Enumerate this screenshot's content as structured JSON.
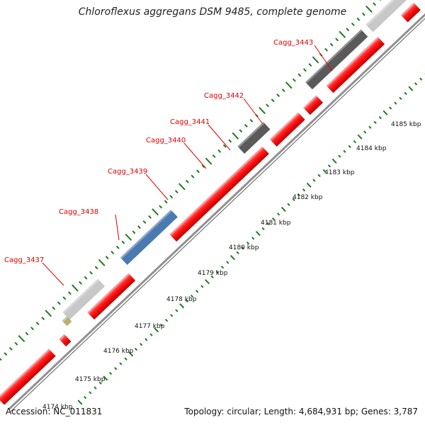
{
  "title": "Chloroflexus aggregans DSM 9485, complete genome",
  "footer": {
    "accession": "Accession: NC_011831",
    "summary": "Topology: circular; Length: 4,684,931 bp; Genes: 3,787"
  },
  "gene_labels": [
    "Cagg_3437",
    "Cagg_3438",
    "Cagg_3439",
    "Cagg_3440",
    "Cagg_3441",
    "Cagg_3442",
    "Cagg_3443"
  ],
  "kbp_labels": [
    "4174 kbp",
    "4175 kbp",
    "4176 kbp",
    "4177 kbp",
    "4178 kbp",
    "4179 kbp",
    "4180 kbp",
    "4181 kbp",
    "4182 kbp",
    "4183 kbp",
    "4184 kbp",
    "4185 kbp"
  ],
  "colors": {
    "cds": "#ff0000",
    "highlight_gray": "#c8c8c8",
    "dark_gray": "#5a5a5a",
    "blue": "#4a7ab0",
    "olive": "#b8b070",
    "magenta": "#ff1aa8",
    "tick_green": "#1f7a1f",
    "backbone": "#909090",
    "label_red": "#dd0000"
  }
}
